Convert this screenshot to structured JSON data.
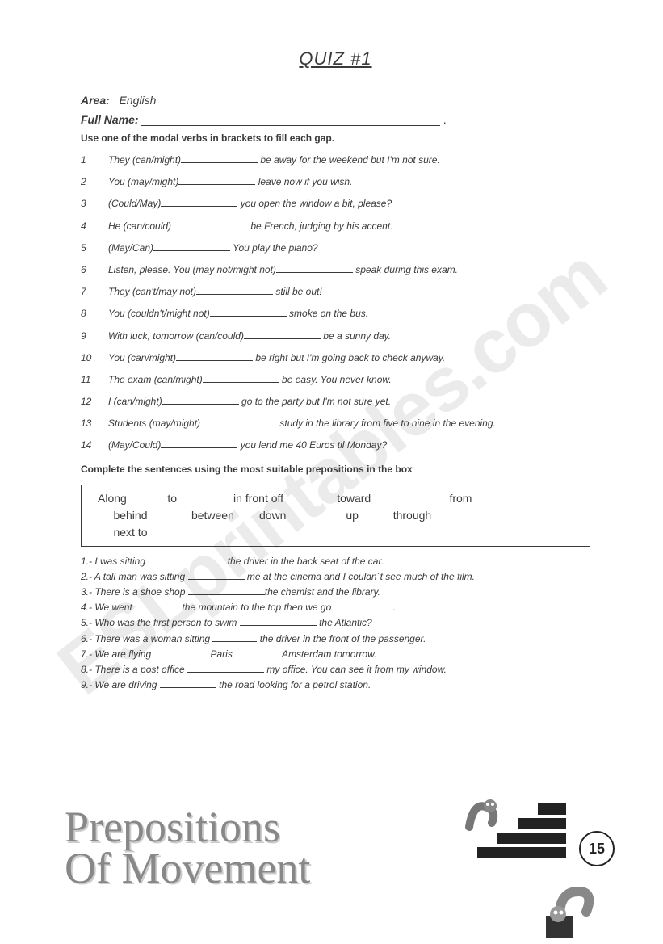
{
  "title": "QUIZ #1",
  "area_label": "Area:",
  "area_value": "English",
  "fullname_label": "Full Name:",
  "instruction1": "Use one of the modal verbs in brackets to fill each gap.",
  "questions": [
    {
      "n": "1",
      "pre": "They (can/might)",
      "post": " be away for the weekend but I'm not sure."
    },
    {
      "n": "2",
      "pre": "You (may/might)",
      "post": " leave now if you wish."
    },
    {
      "n": "3",
      "pre": "(Could/May)",
      "post": " you open the window a bit, please?"
    },
    {
      "n": "4",
      "pre": "He (can/could)",
      "post": " be French, judging by his accent."
    },
    {
      "n": "5",
      "pre": "(May/Can)",
      "post": " You play the piano?"
    },
    {
      "n": "6",
      "pre": "Listen, please. You (may not/might not)",
      "post": " speak during this exam."
    },
    {
      "n": "7",
      "pre": "They (can't/may not)",
      "post": " still be out!"
    },
    {
      "n": "8",
      "pre": "You (couldn't/might not)",
      "post": " smoke on the bus."
    },
    {
      "n": "9",
      "pre": "With luck, tomorrow (can/could)",
      "post": " be a sunny day."
    },
    {
      "n": "10",
      "pre": "You (can/might)",
      "post": " be right but I'm going back to check anyway."
    },
    {
      "n": "11",
      "pre": "The exam (can/might)",
      "post": " be easy. You never know."
    },
    {
      "n": "12",
      "pre": "I (can/might)",
      "post": " go to the party but I'm not sure yet."
    },
    {
      "n": "13",
      "pre": "Students (may/might)",
      "post": " study in the library from five to nine in the evening."
    },
    {
      "n": "14",
      "pre": "(May/Could)",
      "post": " you lend me 40 Euros til Monday?"
    }
  ],
  "instruction2": "Complete the sentences using the most suitable prepositions in the box",
  "prepositions_row1": "Along             to                  in front off                 toward                         from",
  "prepositions_row2": "     behind              between        down                   up           through",
  "prepositions_row3": "     next to",
  "sentences": [
    {
      "n": "1.-",
      "pre": "I was sitting ",
      "post": " the driver in the back seat of the car.",
      "bw": "w1"
    },
    {
      "n": "2.-",
      "pre": "A tall man was sitting ",
      "post": " me at the cinema and I couldn´t see much of the film.",
      "bw": "w2"
    },
    {
      "n": "3.-",
      "pre": "There is a shoe shop ",
      "post": "the chemist and the library.",
      "bw": "w1"
    },
    {
      "n": "4.-",
      "pre": "We went ",
      "mid": " the mountain to the top then we go ",
      "post": " .",
      "bw": "w3",
      "bw2": "w2"
    },
    {
      "n": "5.-",
      "pre": "Who was the first person to swim ",
      "post": " the Atlantic?",
      "bw": "w1"
    },
    {
      "n": "6.-",
      "pre": "There was a woman sitting ",
      "post": " the driver  in the front of the passenger.",
      "bw": "w3"
    },
    {
      "n": "7.-",
      "pre": "We are flying",
      "mid": " Paris ",
      "post": " Amsterdam tomorrow.",
      "bw": "w2",
      "bw2": "w3"
    },
    {
      "n": "8.-",
      "pre": "There is a post office ",
      "post": " my office. You can see it from my window.",
      "bw": "w1"
    },
    {
      "n": "9.-",
      "pre": "We are driving ",
      "post": " the road looking for a petrol station.",
      "bw": "w2"
    }
  ],
  "footer_line1": "Prepositions",
  "footer_line2": "Of Movement",
  "badge": "15",
  "watermark": "ESLprintables.com"
}
